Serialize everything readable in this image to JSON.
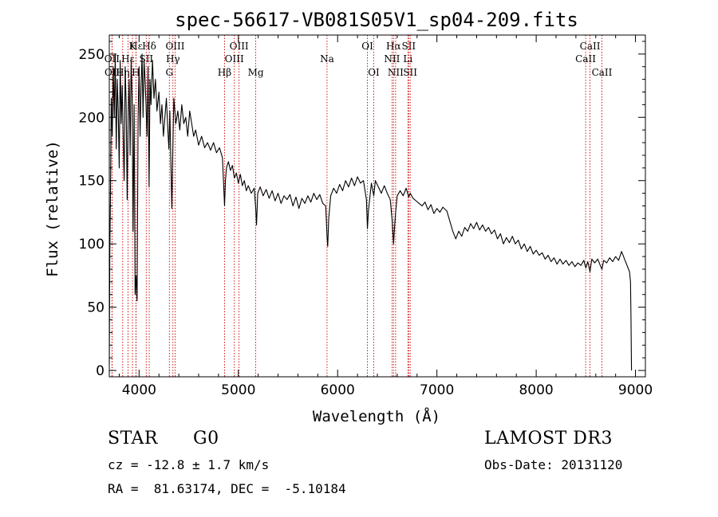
{
  "chart_data": {
    "type": "line",
    "title": "spec-56617-VB081S05V1_sp04-209.fits",
    "xlabel": "Wavelength (Å)",
    "ylabel": "Flux (relative)",
    "xlim": [
      3700,
      9100
    ],
    "ylim": [
      -5,
      265
    ],
    "xticks": [
      4000,
      5000,
      6000,
      7000,
      8000,
      9000
    ],
    "yticks": [
      0,
      50,
      100,
      150,
      200,
      250
    ],
    "grid": false,
    "series": [
      {
        "name": "flux",
        "points": [
          [
            3700,
            5
          ],
          [
            3705,
            90
          ],
          [
            3712,
            140
          ],
          [
            3720,
            215
          ],
          [
            3730,
            185
          ],
          [
            3740,
            240
          ],
          [
            3750,
            200
          ],
          [
            3760,
            250
          ],
          [
            3770,
            175
          ],
          [
            3780,
            230
          ],
          [
            3790,
            205
          ],
          [
            3800,
            160
          ],
          [
            3810,
            245
          ],
          [
            3820,
            195
          ],
          [
            3830,
            225
          ],
          [
            3840,
            185
          ],
          [
            3850,
            150
          ],
          [
            3860,
            240
          ],
          [
            3870,
            210
          ],
          [
            3880,
            135
          ],
          [
            3890,
            200
          ],
          [
            3900,
            230
          ],
          [
            3910,
            170
          ],
          [
            3920,
            245
          ],
          [
            3930,
            215
          ],
          [
            3940,
            110
          ],
          [
            3950,
            210
          ],
          [
            3960,
            60
          ],
          [
            3970,
            75
          ],
          [
            3980,
            55
          ],
          [
            3990,
            200
          ],
          [
            4000,
            240
          ],
          [
            4010,
            185
          ],
          [
            4020,
            225
          ],
          [
            4030,
            250
          ],
          [
            4040,
            200
          ],
          [
            4050,
            245
          ],
          [
            4060,
            230
          ],
          [
            4070,
            210
          ],
          [
            4080,
            185
          ],
          [
            4090,
            240
          ],
          [
            4101,
            145
          ],
          [
            4110,
            230
          ],
          [
            4120,
            210
          ],
          [
            4135,
            245
          ],
          [
            4150,
            215
          ],
          [
            4165,
            230
          ],
          [
            4180,
            205
          ],
          [
            4200,
            220
          ],
          [
            4215,
            195
          ],
          [
            4230,
            210
          ],
          [
            4245,
            185
          ],
          [
            4260,
            200
          ],
          [
            4275,
            215
          ],
          [
            4290,
            190
          ],
          [
            4300,
            175
          ],
          [
            4310,
            205
          ],
          [
            4320,
            165
          ],
          [
            4330,
            128
          ],
          [
            4340,
            175
          ],
          [
            4350,
            215
          ],
          [
            4370,
            195
          ],
          [
            4390,
            205
          ],
          [
            4410,
            190
          ],
          [
            4430,
            210
          ],
          [
            4450,
            195
          ],
          [
            4470,
            200
          ],
          [
            4490,
            185
          ],
          [
            4510,
            205
          ],
          [
            4530,
            195
          ],
          [
            4550,
            185
          ],
          [
            4570,
            190
          ],
          [
            4600,
            178
          ],
          [
            4630,
            185
          ],
          [
            4660,
            176
          ],
          [
            4690,
            180
          ],
          [
            4720,
            174
          ],
          [
            4750,
            180
          ],
          [
            4780,
            172
          ],
          [
            4810,
            176
          ],
          [
            4840,
            168
          ],
          [
            4861,
            130
          ],
          [
            4870,
            150
          ],
          [
            4880,
            160
          ],
          [
            4900,
            165
          ],
          [
            4920,
            158
          ],
          [
            4940,
            162
          ],
          [
            4960,
            152
          ],
          [
            4980,
            156
          ],
          [
            5000,
            148
          ],
          [
            5020,
            155
          ],
          [
            5040,
            146
          ],
          [
            5060,
            150
          ],
          [
            5080,
            142
          ],
          [
            5100,
            146
          ],
          [
            5130,
            140
          ],
          [
            5160,
            144
          ],
          [
            5175,
            128
          ],
          [
            5183,
            115
          ],
          [
            5195,
            140
          ],
          [
            5220,
            145
          ],
          [
            5250,
            138
          ],
          [
            5280,
            143
          ],
          [
            5310,
            136
          ],
          [
            5340,
            142
          ],
          [
            5370,
            134
          ],
          [
            5400,
            140
          ],
          [
            5430,
            132
          ],
          [
            5460,
            138
          ],
          [
            5490,
            135
          ],
          [
            5520,
            139
          ],
          [
            5550,
            130
          ],
          [
            5580,
            137
          ],
          [
            5610,
            128
          ],
          [
            5640,
            136
          ],
          [
            5670,
            132
          ],
          [
            5700,
            138
          ],
          [
            5730,
            133
          ],
          [
            5760,
            140
          ],
          [
            5790,
            135
          ],
          [
            5820,
            139
          ],
          [
            5850,
            132
          ],
          [
            5880,
            130
          ],
          [
            5893,
            106
          ],
          [
            5900,
            98
          ],
          [
            5910,
            120
          ],
          [
            5930,
            138
          ],
          [
            5960,
            144
          ],
          [
            5990,
            140
          ],
          [
            6020,
            147
          ],
          [
            6050,
            142
          ],
          [
            6080,
            150
          ],
          [
            6110,
            145
          ],
          [
            6140,
            152
          ],
          [
            6170,
            146
          ],
          [
            6200,
            153
          ],
          [
            6230,
            148
          ],
          [
            6260,
            150
          ],
          [
            6290,
            135
          ],
          [
            6300,
            112
          ],
          [
            6310,
            126
          ],
          [
            6340,
            148
          ],
          [
            6364,
            138
          ],
          [
            6380,
            150
          ],
          [
            6410,
            145
          ],
          [
            6440,
            140
          ],
          [
            6470,
            146
          ],
          [
            6500,
            140
          ],
          [
            6530,
            135
          ],
          [
            6550,
            118
          ],
          [
            6563,
            100
          ],
          [
            6575,
            115
          ],
          [
            6584,
            125
          ],
          [
            6600,
            138
          ],
          [
            6630,
            142
          ],
          [
            6660,
            138
          ],
          [
            6690,
            144
          ],
          [
            6716,
            137
          ],
          [
            6731,
            140
          ],
          [
            6760,
            136
          ],
          [
            6790,
            134
          ],
          [
            6820,
            132
          ],
          [
            6850,
            130
          ],
          [
            6880,
            133
          ],
          [
            6910,
            127
          ],
          [
            6940,
            131
          ],
          [
            6970,
            124
          ],
          [
            7000,
            128
          ],
          [
            7030,
            125
          ],
          [
            7060,
            129
          ],
          [
            7100,
            126
          ],
          [
            7130,
            118
          ],
          [
            7160,
            110
          ],
          [
            7190,
            104
          ],
          [
            7220,
            110
          ],
          [
            7250,
            106
          ],
          [
            7280,
            113
          ],
          [
            7310,
            110
          ],
          [
            7340,
            116
          ],
          [
            7370,
            112
          ],
          [
            7400,
            117
          ],
          [
            7430,
            111
          ],
          [
            7460,
            115
          ],
          [
            7490,
            110
          ],
          [
            7520,
            113
          ],
          [
            7550,
            108
          ],
          [
            7580,
            111
          ],
          [
            7610,
            104
          ],
          [
            7640,
            108
          ],
          [
            7670,
            100
          ],
          [
            7700,
            105
          ],
          [
            7730,
            101
          ],
          [
            7760,
            106
          ],
          [
            7790,
            100
          ],
          [
            7820,
            103
          ],
          [
            7850,
            96
          ],
          [
            7880,
            100
          ],
          [
            7910,
            94
          ],
          [
            7940,
            98
          ],
          [
            7970,
            92
          ],
          [
            8000,
            95
          ],
          [
            8030,
            91
          ],
          [
            8060,
            93
          ],
          [
            8090,
            88
          ],
          [
            8120,
            91
          ],
          [
            8150,
            86
          ],
          [
            8180,
            89
          ],
          [
            8210,
            84
          ],
          [
            8240,
            88
          ],
          [
            8270,
            84
          ],
          [
            8300,
            87
          ],
          [
            8330,
            83
          ],
          [
            8360,
            86
          ],
          [
            8390,
            82
          ],
          [
            8420,
            85
          ],
          [
            8450,
            83
          ],
          [
            8480,
            87
          ],
          [
            8500,
            81
          ],
          [
            8520,
            86
          ],
          [
            8542,
            78
          ],
          [
            8560,
            88
          ],
          [
            8590,
            85
          ],
          [
            8620,
            88
          ],
          [
            8640,
            84
          ],
          [
            8662,
            80
          ],
          [
            8680,
            87
          ],
          [
            8710,
            85
          ],
          [
            8740,
            89
          ],
          [
            8770,
            86
          ],
          [
            8800,
            90
          ],
          [
            8830,
            87
          ],
          [
            8860,
            94
          ],
          [
            8880,
            90
          ],
          [
            8900,
            86
          ],
          [
            8920,
            82
          ],
          [
            8940,
            78
          ],
          [
            8950,
            70
          ],
          [
            8955,
            40
          ],
          [
            8960,
            0
          ]
        ]
      }
    ],
    "line_markers": [
      {
        "label": "Hε",
        "wavelength": 3970,
        "row": 0
      },
      {
        "label": "OII",
        "wavelength": 3727,
        "row": 1
      },
      {
        "label": "OII",
        "wavelength": 3729,
        "row": 2
      },
      {
        "label": "Hη",
        "wavelength": 3835,
        "row": 2
      },
      {
        "label": "Hε",
        "wavelength": 3889,
        "row": 1
      },
      {
        "label": "K",
        "wavelength": 3934,
        "row": 0
      },
      {
        "label": "H",
        "wavelength": 3968,
        "row": 2
      },
      {
        "label": "SII",
        "wavelength": 4072,
        "row": 1
      },
      {
        "label": "Hδ",
        "wavelength": 4102,
        "row": 0
      },
      {
        "label": "OIII",
        "wavelength": 4363,
        "row": 0
      },
      {
        "label": "Hγ",
        "wavelength": 4341,
        "row": 1
      },
      {
        "label": "G",
        "wavelength": 4305,
        "row": 2
      },
      {
        "label": "Hβ",
        "wavelength": 4861,
        "row": 2
      },
      {
        "label": "OIII",
        "wavelength": 5007,
        "row": 0
      },
      {
        "label": "OIII",
        "wavelength": 4959,
        "row": 1
      },
      {
        "label": "Mg",
        "wavelength": 5175,
        "row": 2
      },
      {
        "label": "Na",
        "wavelength": 5893,
        "row": 1
      },
      {
        "label": "OI",
        "wavelength": 6300,
        "row": 0
      },
      {
        "label": "OI",
        "wavelength": 6364,
        "row": 2
      },
      {
        "label": "Hα",
        "wavelength": 6563,
        "row": 0
      },
      {
        "label": "NII",
        "wavelength": 6548,
        "row": 1
      },
      {
        "label": "NII",
        "wavelength": 6584,
        "row": 2
      },
      {
        "label": "SII",
        "wavelength": 6716,
        "row": 0
      },
      {
        "label": "Li",
        "wavelength": 6708,
        "row": 1
      },
      {
        "label": "SII",
        "wavelength": 6731,
        "row": 2
      },
      {
        "label": "CaII",
        "wavelength": 8542,
        "row": 0
      },
      {
        "label": "CaII",
        "wavelength": 8498,
        "row": 1
      },
      {
        "label": "CaII",
        "wavelength": 8662,
        "row": 2
      }
    ],
    "marker_color": "#cc0000"
  },
  "info": {
    "object_class": "STAR",
    "subclass": "G0",
    "survey": "LAMOST DR3",
    "redshift": "cz = -12.8 ± 1.7 km/s",
    "obs_date": "Obs-Date: 20131120",
    "coords": "RA =  81.63174, DEC =  -5.10184"
  }
}
